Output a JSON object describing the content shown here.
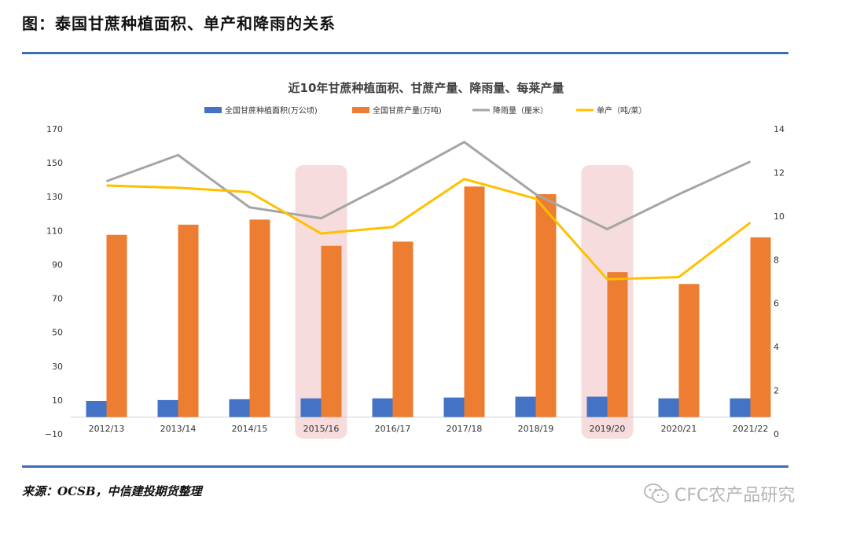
{
  "page": {
    "title": "图：泰国甘蔗种植面积、单产和降雨的关系",
    "source": "来源：OCSB，中信建投期货整理",
    "watermark": "CFC农产品研究"
  },
  "colors": {
    "area": "#4472c4",
    "production": "#ed7d31",
    "rainfall": "#a5a5a5",
    "yield": "#ffc000",
    "highlight": "#f6dcdc",
    "rule": "#3a6fb8"
  },
  "chart_data": {
    "type": "bar",
    "title": "近10年甘蔗种植面积、甘蔗产量、降雨量、每莱产量",
    "categories": [
      "2012/13",
      "2013/14",
      "2014/15",
      "2015/16",
      "2016/17",
      "2017/18",
      "2018/19",
      "2019/20",
      "2020/21",
      "2021/22"
    ],
    "highlighted_categories": [
      "2015/16",
      "2019/20"
    ],
    "left_axis": {
      "ylim": [
        -10,
        170
      ],
      "ticks": [
        -10,
        10,
        30,
        50,
        70,
        90,
        110,
        130,
        150,
        170
      ]
    },
    "right_axis": {
      "ylim": [
        0,
        14
      ],
      "ticks": [
        0,
        2,
        4,
        6,
        8,
        10,
        12,
        14
      ]
    },
    "series": [
      {
        "name": "全国甘蔗种植面积(万公顷)",
        "kind": "bar",
        "axis": "left",
        "color_key": "area",
        "values": [
          9.5,
          10,
          10.5,
          11,
          11,
          11.5,
          12,
          12,
          11,
          11
        ]
      },
      {
        "name": "全国甘蔗产量(万吨)",
        "kind": "bar",
        "axis": "left",
        "color_key": "production",
        "values": [
          107.5,
          113.5,
          116.5,
          101,
          103.5,
          136,
          131.5,
          85.5,
          78.5,
          106
        ]
      },
      {
        "name": "降雨量（厘米）",
        "kind": "line",
        "axis": "right",
        "color_key": "rainfall",
        "values": [
          11.6,
          12.8,
          10.4,
          9.9,
          11.6,
          13.4,
          11.0,
          9.4,
          11.0,
          12.5
        ]
      },
      {
        "name": "单产（吨/莱）",
        "kind": "line",
        "axis": "right",
        "color_key": "yield",
        "values": [
          11.4,
          11.3,
          11.1,
          9.2,
          9.5,
          11.7,
          10.8,
          7.1,
          7.2,
          9.7
        ]
      }
    ]
  }
}
